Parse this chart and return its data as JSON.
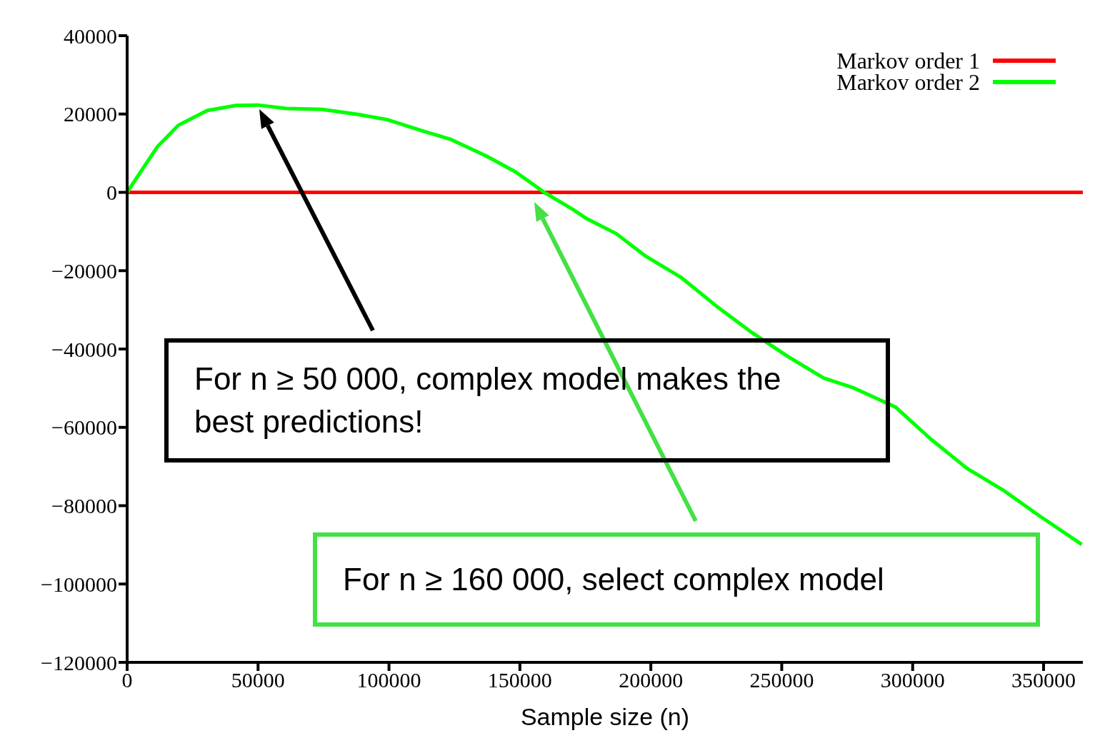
{
  "chart_data": {
    "type": "line",
    "xlabel": "Sample size (n)",
    "xlim": [
      0,
      365000
    ],
    "xticks": [
      0,
      50000,
      100000,
      150000,
      200000,
      250000,
      300000,
      350000
    ],
    "ylim": [
      -120000,
      40000
    ],
    "yticks": [
      40000,
      20000,
      0,
      {
        "value": -20000,
        "label": "−20000"
      },
      {
        "value": -40000,
        "label": "−40000"
      },
      {
        "value": -60000,
        "label": "−60000"
      },
      {
        "value": -80000,
        "label": "−80000"
      },
      {
        "value": -100000,
        "label": "−100000"
      },
      {
        "value": -120000,
        "label": "−120000"
      }
    ],
    "legend": "top right",
    "marker": "none",
    "line_style": "solid",
    "series": [
      {
        "name": "Markov order 1",
        "color": "#ff0000",
        "x": [
          0,
          365000
        ],
        "values": [
          0,
          0
        ]
      },
      {
        "name": "Markov order 2",
        "color": "#00ff00",
        "x": [
          0,
          6000,
          11500,
          19700,
          30650,
          41600,
          49800,
          60800,
          74500,
          88100,
          99100,
          112800,
          123700,
          137400,
          148400,
          159300,
          170300,
          175700,
          186700,
          197600,
          211300,
          225000,
          238600,
          252300,
          266000,
          277000,
          293400,
          307100,
          320800,
          334500,
          348200,
          364600
        ],
        "values": [
          0,
          6100,
          11600,
          17200,
          20900,
          22200,
          22300,
          21400,
          21200,
          19900,
          18600,
          15700,
          13500,
          9200,
          5200,
          0,
          -4400,
          -6800,
          -10500,
          -16100,
          -21600,
          -29000,
          -35800,
          -41900,
          -47400,
          -49800,
          -54800,
          -63100,
          -70500,
          -76000,
          -82500,
          -89900
        ]
      }
    ],
    "annotations": [
      "For n ≥ 50 000, complex model makes the best predictions!",
      "For n ≥ 160 000, select complex model"
    ]
  }
}
